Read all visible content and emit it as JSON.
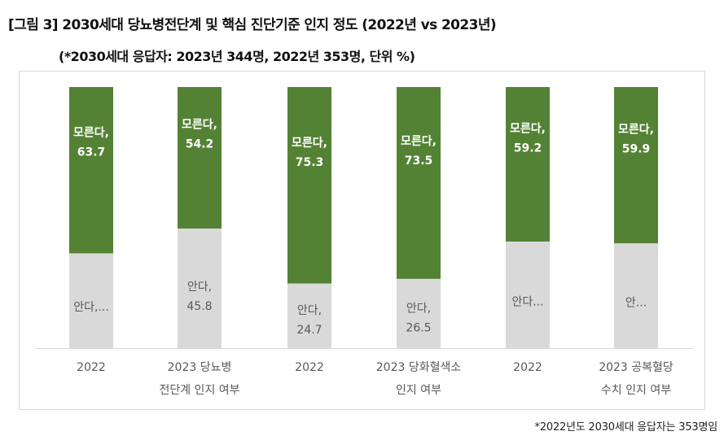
{
  "title": "[그림 3] 2030세대 당뇨병전단계 및 핵심 진단기준 인지 정도 (2022년 vs 2023년)",
  "subtitle": "(*2030세대 응답자: 2023년 344명, 2022년 353명, 단위 %)",
  "footnote": "*2022년도 2030세대 응답자는 353명임",
  "chart_data": {
    "type": "bar",
    "stacked": true,
    "ylim": [
      0,
      100
    ],
    "grid": false,
    "colors": {
      "knows": "#d9d9d9",
      "unknown": "#548235"
    },
    "groups": [
      {
        "x_label_lines": [
          "2022"
        ],
        "knows": {
          "value": 36.3,
          "label_lines": [
            "안다,..."
          ]
        },
        "unknown": {
          "value": 63.7,
          "label_lines": [
            "모른다,",
            "63.7"
          ]
        }
      },
      {
        "x_label_lines": [
          "2023 당뇨병",
          "전단계 인지 여부"
        ],
        "knows": {
          "value": 45.8,
          "label_lines": [
            "안다,",
            "45.8"
          ]
        },
        "unknown": {
          "value": 54.2,
          "label_lines": [
            "모른다,",
            "54.2"
          ]
        }
      },
      {
        "x_label_lines": [
          "2022"
        ],
        "knows": {
          "value": 24.7,
          "label_lines": [
            "안다,",
            "24.7"
          ]
        },
        "unknown": {
          "value": 75.3,
          "label_lines": [
            "모른다,",
            "75.3"
          ]
        }
      },
      {
        "x_label_lines": [
          "2023 당화혈색소",
          "인지 여부"
        ],
        "knows": {
          "value": 26.5,
          "label_lines": [
            "안다,",
            "26.5"
          ]
        },
        "unknown": {
          "value": 73.5,
          "label_lines": [
            "모른다,",
            "73.5"
          ]
        }
      },
      {
        "x_label_lines": [
          "2022"
        ],
        "knows": {
          "value": 40.8,
          "label_lines": [
            "안다..."
          ]
        },
        "unknown": {
          "value": 59.2,
          "label_lines": [
            "모른다,",
            "59.2"
          ]
        }
      },
      {
        "x_label_lines": [
          "2023 공복혈당",
          "수치 인지 여부"
        ],
        "knows": {
          "value": 40.1,
          "label_lines": [
            "안..."
          ]
        },
        "unknown": {
          "value": 59.9,
          "label_lines": [
            "모른다,",
            "59.9"
          ]
        }
      }
    ]
  }
}
